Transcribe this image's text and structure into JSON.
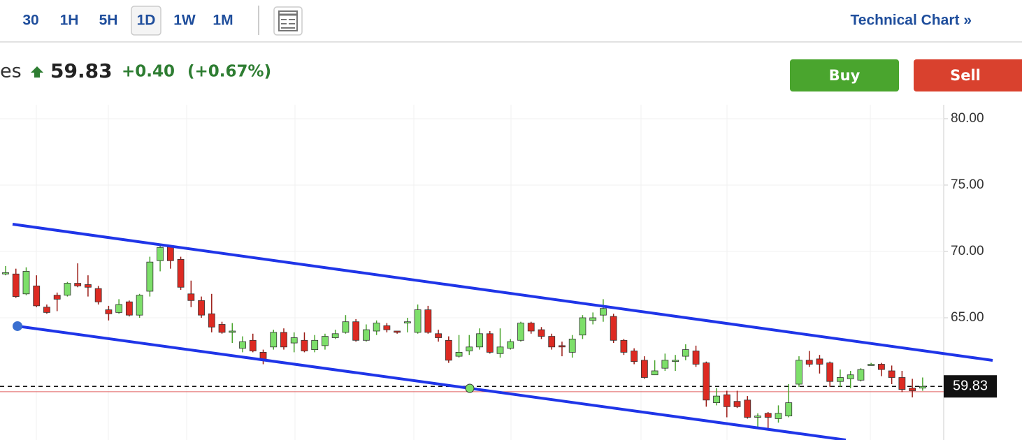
{
  "toolbar": {
    "intervals": [
      "30",
      "1H",
      "5H",
      "1D",
      "1W",
      "1M"
    ],
    "selected": "1D",
    "technical_chart": "Technical Chart »"
  },
  "quote": {
    "name_fragment": "es",
    "change": "+0.40",
    "change_percent": "(+0.67%)"
  },
  "buttons": {
    "buy": "Buy",
    "sell": "Sell"
  },
  "chart_data": {
    "type": "candlestick",
    "up_color": "#7ddf6a",
    "down_color": "#dd2a22",
    "open": [
      68.3,
      68.3,
      66.8,
      67.4,
      65.8,
      66.7,
      66.7,
      67.6,
      67.5,
      67.2,
      65.6,
      65.4,
      66.2,
      65.2,
      67.0,
      69.3,
      70.4,
      69.4,
      66.8,
      66.3,
      65.3,
      64.5,
      63.9,
      62.7,
      63.3,
      62.4,
      62.8,
      63.9,
      63.1,
      63.3,
      62.6,
      62.9,
      63.5,
      63.9,
      64.7,
      63.3,
      64.0,
      64.4,
      64.0,
      64.6,
      63.9,
      65.6,
      63.8,
      63.3,
      62.1,
      62.5,
      62.8,
      63.8,
      62.3,
      62.7,
      63.3,
      64.6,
      64.1,
      63.6,
      62.9,
      62.4,
      63.7,
      64.8,
      65.2,
      65.1,
      63.3,
      62.5,
      61.8,
      60.7,
      61.2,
      61.7,
      62.1,
      62.5,
      61.6,
      58.6,
      59.2,
      58.7,
      58.8,
      57.5,
      57.8,
      57.4,
      57.6,
      60.0,
      61.8,
      61.9,
      61.6,
      60.2,
      60.4,
      60.3,
      61.4,
      61.5,
      61.0,
      60.5,
      59.7,
      59.7
    ],
    "high": [
      68.9,
      68.7,
      68.8,
      68.2,
      66.0,
      66.9,
      67.7,
      69.1,
      68.2,
      67.4,
      65.9,
      66.4,
      66.3,
      66.8,
      69.6,
      70.5,
      70.5,
      69.6,
      67.8,
      66.6,
      66.8,
      64.7,
      64.6,
      63.6,
      63.8,
      62.6,
      64.1,
      64.2,
      63.9,
      63.9,
      63.7,
      63.8,
      64.1,
      65.2,
      64.9,
      64.5,
      64.8,
      64.6,
      64.0,
      65.0,
      66.0,
      65.9,
      64.1,
      63.6,
      63.7,
      63.7,
      64.2,
      64.0,
      64.2,
      63.4,
      64.7,
      64.7,
      64.3,
      63.8,
      63.2,
      63.7,
      65.2,
      65.4,
      66.4,
      65.3,
      63.4,
      62.7,
      62.1,
      61.8,
      62.3,
      62.2,
      63.0,
      62.9,
      61.7,
      59.7,
      59.5,
      59.5,
      59.1,
      57.8,
      57.9,
      58.4,
      60.0,
      62.1,
      62.5,
      62.2,
      61.7,
      61.1,
      61.0,
      61.2,
      61.6,
      61.6,
      61.4,
      61.0,
      60.4,
      60.5
    ],
    "low": [
      68.2,
      66.5,
      66.7,
      65.8,
      65.3,
      65.5,
      66.6,
      67.3,
      66.6,
      66.0,
      64.8,
      65.3,
      65.1,
      65.0,
      66.6,
      68.5,
      68.7,
      67.1,
      65.8,
      65.0,
      63.9,
      63.8,
      63.1,
      62.4,
      62.4,
      61.5,
      62.6,
      62.6,
      62.4,
      62.4,
      62.4,
      62.6,
      63.4,
      63.8,
      63.2,
      63.2,
      63.7,
      63.9,
      63.8,
      63.9,
      63.8,
      63.8,
      63.2,
      61.6,
      62.0,
      62.2,
      62.6,
      62.3,
      62.0,
      62.6,
      63.2,
      63.8,
      63.4,
      62.6,
      62.1,
      62.0,
      63.4,
      64.5,
      64.7,
      63.1,
      62.2,
      61.5,
      60.4,
      60.7,
      61.0,
      61.0,
      61.8,
      61.3,
      58.3,
      58.4,
      57.5,
      58.2,
      57.4,
      56.7,
      56.6,
      57.1,
      57.5,
      59.8,
      61.3,
      60.8,
      59.8,
      59.8,
      59.7,
      60.2,
      61.4,
      60.6,
      60.0,
      59.4,
      59.0,
      59.5
    ],
    "close": [
      68.4,
      66.6,
      68.5,
      65.9,
      65.4,
      66.4,
      67.6,
      67.4,
      67.3,
      66.2,
      65.3,
      66.0,
      65.2,
      66.7,
      69.2,
      70.3,
      69.3,
      67.3,
      66.3,
      65.2,
      64.3,
      63.9,
      64.0,
      63.2,
      62.5,
      61.8,
      63.9,
      62.8,
      63.5,
      62.5,
      63.3,
      63.6,
      63.8,
      64.7,
      63.3,
      64.1,
      64.6,
      64.1,
      63.9,
      64.7,
      65.6,
      63.9,
      63.5,
      61.8,
      62.4,
      62.8,
      63.8,
      62.4,
      62.8,
      63.2,
      64.6,
      64.0,
      63.6,
      62.8,
      62.8,
      63.4,
      65.0,
      65.0,
      65.7,
      63.3,
      62.4,
      61.7,
      60.5,
      61.0,
      61.8,
      61.8,
      62.6,
      61.5,
      58.8,
      59.1,
      58.3,
      58.3,
      57.5,
      57.6,
      57.5,
      57.8,
      58.6,
      61.8,
      61.5,
      61.5,
      60.2,
      60.5,
      60.7,
      61.1,
      61.5,
      61.1,
      60.5,
      59.6,
      59.5,
      59.83
    ],
    "last_price": 59.83,
    "previous_close": 59.43,
    "channel_lines": [
      {
        "color": "#1f35e8",
        "start": 72.05,
        "end": 61.79
      },
      {
        "color": "#1f35e8",
        "start": 64.37,
        "end": 55.79
      }
    ],
    "ylim": [
      55.79,
      81.05
    ],
    "yticks": [
      {
        "value": 65,
        "label": "65.00"
      },
      {
        "value": 70,
        "label": "70.00"
      },
      {
        "value": 75,
        "label": "75.00"
      },
      {
        "value": 80,
        "label": "80.00"
      }
    ],
    "grid": true
  }
}
